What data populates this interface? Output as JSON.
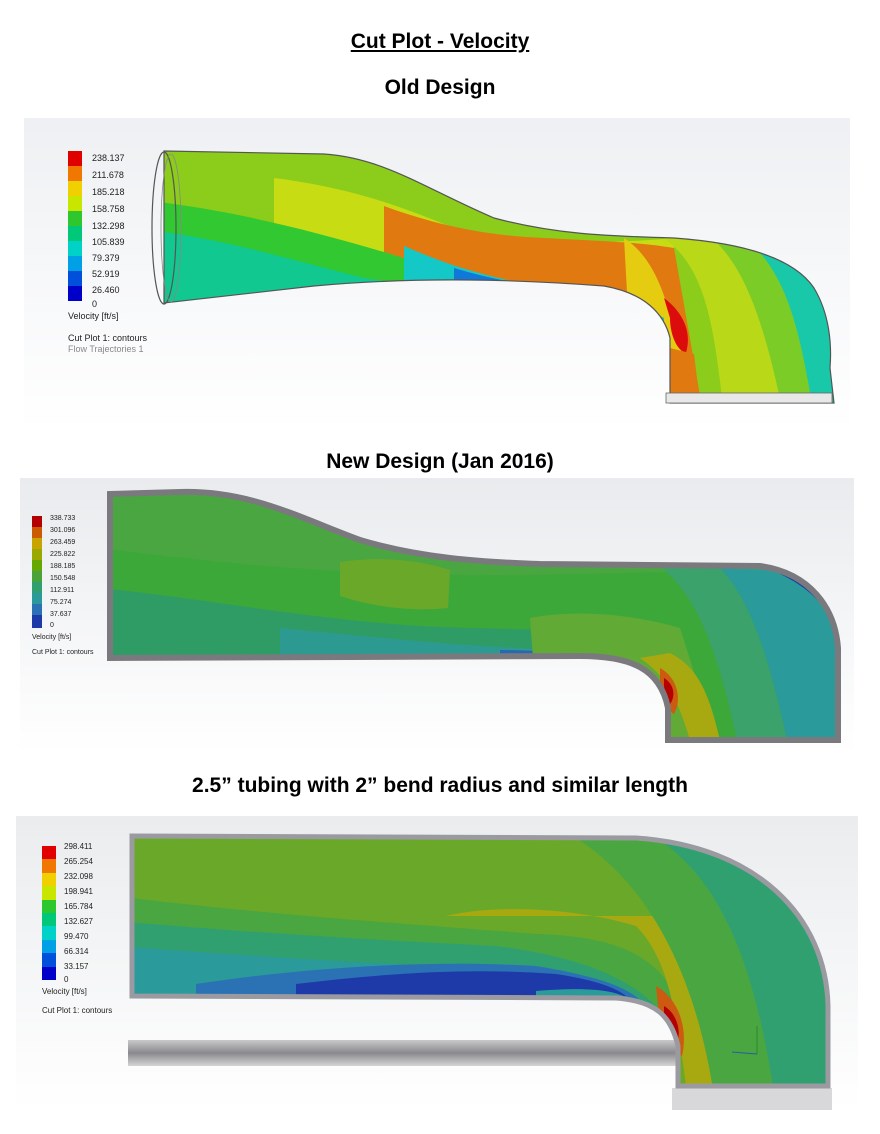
{
  "title": "Cut Plot - Velocity",
  "sections": [
    {
      "heading": "Old Design",
      "legend": {
        "ticks": [
          "238.137",
          "211.678",
          "185.218",
          "158.758",
          "132.298",
          "105.839",
          "79.379",
          "52.919",
          "26.460",
          "0"
        ],
        "unit_label": "Velocity [ft/s]",
        "captions": [
          "Cut Plot 1: contours",
          "Flow Trajectories 1"
        ]
      }
    },
    {
      "heading": "New Design (Jan 2016)",
      "legend": {
        "ticks": [
          "338.733",
          "301.096",
          "263.459",
          "225.822",
          "188.185",
          "150.548",
          "112.911",
          "75.274",
          "37.637",
          "0"
        ],
        "unit_label": "Velocity [ft/s]",
        "captions": [
          "Cut Plot 1: contours"
        ]
      }
    },
    {
      "heading": "2.5” tubing with 2” bend radius and similar length",
      "legend": {
        "ticks": [
          "298.411",
          "265.254",
          "232.098",
          "198.941",
          "165.784",
          "132.627",
          "99.470",
          "66.314",
          "33.157",
          "0"
        ],
        "unit_label": "Velocity [ft/s]",
        "captions": [
          "Cut Plot 1: contours"
        ]
      }
    }
  ],
  "colors": {
    "scale": [
      "#e00000",
      "#f07800",
      "#f0d000",
      "#c8e600",
      "#2ec82e",
      "#00c878",
      "#00d2c8",
      "#00a0e6",
      "#0050dc",
      "#0000c8"
    ],
    "muted_scale": [
      "#b40000",
      "#cc5a00",
      "#c8a400",
      "#9aa800",
      "#66a800",
      "#4aa23a",
      "#30a070",
      "#2a9a9a",
      "#2a72b4",
      "#1e3aa8"
    ]
  }
}
